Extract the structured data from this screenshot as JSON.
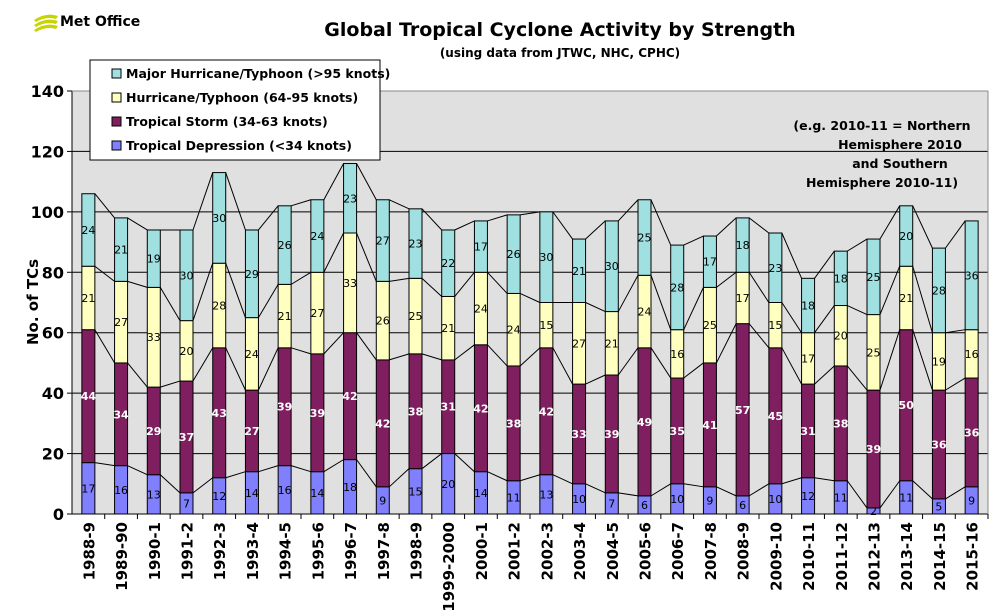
{
  "logo": {
    "text": "Met Office"
  },
  "chart_data": {
    "type": "bar",
    "stacked": true,
    "title": "Global Tropical Cyclone Activity by Strength",
    "subtitle": "(using data from JTWC, NHC, CPHC)",
    "ylabel": "No. of TCs",
    "xlabel": "",
    "ylim": [
      0,
      140
    ],
    "yticks": [
      0,
      20,
      40,
      60,
      80,
      100,
      120,
      140
    ],
    "grid": true,
    "legend_position": "top-left",
    "annotation": [
      "(e.g. 2010-11 = Northern",
      "Hemisphere 2010",
      "and Southern",
      "Hemisphere 2010-11)"
    ],
    "categories": [
      "1988-9",
      "1989-90",
      "1990-1",
      "1991-2",
      "1992-3",
      "1993-4",
      "1994-5",
      "1995-6",
      "1996-7",
      "1997-8",
      "1998-9",
      "1999-2000",
      "2000-1",
      "2001-2",
      "2002-3",
      "2003-4",
      "2004-5",
      "2005-6",
      "2006-7",
      "2007-8",
      "2008-9",
      "2009-10",
      "2010-11",
      "2011-12",
      "2012-13",
      "2013-14",
      "2014-15",
      "2015-16"
    ],
    "series": [
      {
        "name": "Tropical Depression (<34 knots)",
        "color": "#8080ff",
        "label_color": "#000000",
        "values": [
          17,
          16,
          13,
          7,
          12,
          14,
          16,
          14,
          18,
          9,
          15,
          20,
          14,
          11,
          13,
          10,
          7,
          6,
          10,
          9,
          6,
          10,
          12,
          11,
          2,
          11,
          5,
          9
        ]
      },
      {
        "name": "Tropical Storm (34-63 knots)",
        "color": "#7f1f5f",
        "label_color": "#ffffff",
        "values": [
          44,
          34,
          29,
          37,
          43,
          27,
          39,
          39,
          42,
          42,
          38,
          31,
          42,
          38,
          42,
          33,
          39,
          49,
          35,
          41,
          57,
          45,
          31,
          38,
          39,
          50,
          36,
          36
        ]
      },
      {
        "name": "Hurricane/Typhoon (64-95 knots)",
        "color": "#ffffc0",
        "label_color": "#000000",
        "values": [
          21,
          27,
          33,
          20,
          28,
          24,
          21,
          27,
          33,
          26,
          25,
          21,
          24,
          24,
          15,
          27,
          21,
          24,
          16,
          25,
          17,
          15,
          17,
          20,
          25,
          21,
          19,
          16
        ]
      },
      {
        "name": "Major Hurricane/Typhoon (>95 knots)",
        "color": "#a0e0e0",
        "label_color": "#000000",
        "values": [
          24,
          21,
          19,
          30,
          30,
          29,
          26,
          24,
          23,
          27,
          23,
          22,
          17,
          26,
          30,
          21,
          30,
          25,
          28,
          17,
          18,
          23,
          18,
          18,
          25,
          20,
          28,
          36
        ]
      }
    ]
  }
}
